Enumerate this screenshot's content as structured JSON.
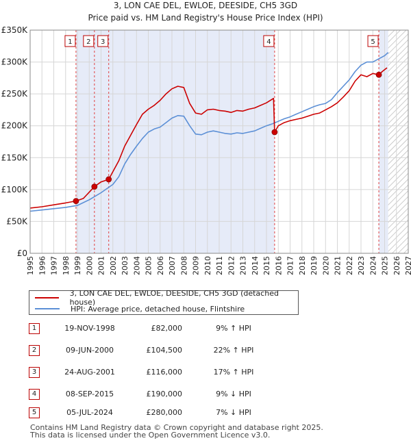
{
  "chart_data": {
    "type": "line",
    "title": "3, LON CAE DEL, EWLOE, DEESIDE, CH5 3GD",
    "subtitle": "Price paid vs. HM Land Registry's House Price Index (HPI)",
    "xlim": [
      1995,
      2027
    ],
    "ylim": [
      0,
      350000
    ],
    "y_ticks": [
      0,
      50000,
      100000,
      150000,
      200000,
      250000,
      300000,
      350000
    ],
    "y_tick_labels": [
      "£0",
      "£50K",
      "£100K",
      "£150K",
      "£200K",
      "£250K",
      "£300K",
      "£350K"
    ],
    "x_ticks": [
      1995,
      1996,
      1997,
      1998,
      1999,
      2000,
      2001,
      2002,
      2003,
      2004,
      2005,
      2006,
      2007,
      2008,
      2009,
      2010,
      2011,
      2012,
      2013,
      2014,
      2015,
      2016,
      2017,
      2018,
      2019,
      2020,
      2021,
      2022,
      2023,
      2024,
      2025,
      2026,
      2027
    ],
    "x_tick_labels": [
      "1995",
      "1996",
      "1997",
      "1998",
      "1999",
      "2000",
      "2001",
      "2002",
      "2003",
      "2004",
      "2005",
      "2006",
      "2007",
      "2008",
      "2009",
      "2010",
      "2011",
      "2012",
      "2013",
      "2014",
      "2015",
      "2016",
      "2017",
      "2018",
      "2019",
      "2020",
      "2021",
      "2022",
      "2023",
      "2024",
      "2025",
      "2026",
      "2027"
    ],
    "shaded_ranges": [
      [
        1998.88,
        2015.69
      ],
      [
        2024.51,
        2025.3
      ]
    ],
    "hatched_from": 2025.3,
    "series": [
      {
        "name": "3, LON CAE DEL, EWLOE, DEESIDE, CH5 3GD (detached house)",
        "color": "#cc0000",
        "x": [
          1995,
          1996,
          1997,
          1998,
          1998.88,
          1999.5,
          2000.44,
          2001,
          2001.65,
          2002,
          2002.5,
          2003,
          2003.5,
          2004,
          2004.5,
          2005,
          2005.5,
          2006,
          2006.5,
          2007,
          2007.5,
          2008,
          2008.5,
          2009,
          2009.5,
          2010,
          2010.5,
          2011,
          2011.5,
          2012,
          2012.5,
          2013,
          2013.5,
          2014,
          2014.5,
          2015,
          2015.6,
          2015.69,
          2016,
          2016.5,
          2017,
          2017.5,
          2018,
          2018.5,
          2019,
          2019.5,
          2020,
          2020.5,
          2021,
          2021.5,
          2022,
          2022.5,
          2023,
          2023.5,
          2024,
          2024.51,
          2024.8,
          2025.2
        ],
        "y": [
          71000,
          73000,
          76000,
          79000,
          82000,
          86000,
          104500,
          112000,
          116000,
          128000,
          145000,
          168000,
          185000,
          202000,
          218000,
          226000,
          232000,
          240000,
          250000,
          258000,
          262000,
          260000,
          235000,
          220000,
          218000,
          225000,
          226000,
          224000,
          223000,
          221000,
          224000,
          223000,
          226000,
          228000,
          232000,
          236000,
          243000,
          190000,
          200000,
          205000,
          208000,
          210000,
          212000,
          215000,
          218000,
          220000,
          225000,
          230000,
          236000,
          245000,
          255000,
          270000,
          280000,
          277000,
          282000,
          280000,
          285000,
          291000
        ]
      },
      {
        "name": "HPI: Average price, detached house, Flintshire",
        "color": "#5b8fd6",
        "x": [
          1995,
          1996,
          1997,
          1998,
          1999,
          2000,
          2001,
          2002,
          2002.5,
          2003,
          2003.5,
          2004,
          2004.5,
          2005,
          2005.5,
          2006,
          2006.5,
          2007,
          2007.5,
          2008,
          2008.5,
          2009,
          2009.5,
          2010,
          2010.5,
          2011,
          2011.5,
          2012,
          2012.5,
          2013,
          2013.5,
          2014,
          2014.5,
          2015,
          2015.5,
          2016,
          2016.5,
          2017,
          2017.5,
          2018,
          2018.5,
          2019,
          2019.5,
          2020,
          2020.5,
          2021,
          2021.5,
          2022,
          2022.5,
          2023,
          2023.5,
          2024,
          2024.5,
          2025,
          2025.3
        ],
        "y": [
          66000,
          68000,
          70000,
          72000,
          75000,
          84000,
          95000,
          108000,
          120000,
          140000,
          155000,
          168000,
          180000,
          190000,
          195000,
          198000,
          205000,
          212000,
          216000,
          215000,
          200000,
          187000,
          186000,
          190000,
          192000,
          190000,
          188000,
          187000,
          189000,
          188000,
          190000,
          192000,
          196000,
          200000,
          203000,
          207000,
          211000,
          214000,
          218000,
          222000,
          226000,
          230000,
          233000,
          235000,
          241000,
          252000,
          262000,
          272000,
          285000,
          295000,
          300000,
          300000,
          305000,
          310000,
          315000
        ]
      }
    ],
    "sales": [
      {
        "label": "1",
        "date": "19-NOV-1998",
        "x": 1998.88,
        "price": 82000,
        "price_text": "£82,000",
        "hpi": "9% ↑ HPI"
      },
      {
        "label": "2",
        "date": "09-JUN-2000",
        "x": 2000.44,
        "price": 104500,
        "price_text": "£104,500",
        "hpi": "22% ↑ HPI"
      },
      {
        "label": "3",
        "date": "24-AUG-2001",
        "x": 2001.65,
        "price": 116000,
        "price_text": "£116,000",
        "hpi": "17% ↑ HPI"
      },
      {
        "label": "4",
        "date": "08-SEP-2015",
        "x": 2015.69,
        "price": 190000,
        "price_text": "£190,000",
        "hpi": "9% ↓ HPI"
      },
      {
        "label": "5",
        "date": "05-JUL-2024",
        "x": 2024.51,
        "price": 280000,
        "price_text": "£280,000",
        "hpi": "7% ↓ HPI"
      }
    ]
  },
  "legend": {
    "property_label": "3, LON CAE DEL, EWLOE, DEESIDE, CH5 3GD (detached house)",
    "hpi_label": "HPI: Average price, detached house, Flintshire",
    "property_color": "#cc0000",
    "hpi_color": "#5b8fd6"
  },
  "footer": {
    "line1": "Contains HM Land Registry data © Crown copyright and database right 2025.",
    "line2": "This data is licensed under the Open Government Licence v3.0."
  }
}
